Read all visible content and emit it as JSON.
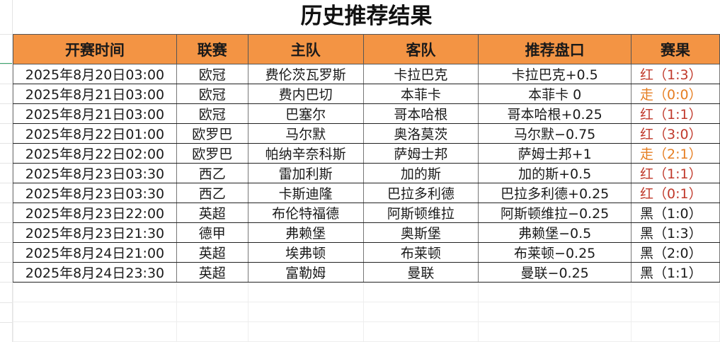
{
  "title": "历史推荐结果",
  "columns": [
    "开赛时间",
    "联赛",
    "主队",
    "客队",
    "推荐盘口",
    "赛果"
  ],
  "colors": {
    "header_bg": "#f39444",
    "red": "#c0392b",
    "push": "#e67e22",
    "black": "#1a1a1a"
  },
  "rows": [
    {
      "time": "2025年8月20日03:00",
      "league": "欧冠",
      "home": "费伦茨瓦罗斯",
      "away": "卡拉巴克",
      "pick": "卡拉巴克+0.5",
      "result": "红（1:3）",
      "status": "red"
    },
    {
      "time": "2025年8月21日03:00",
      "league": "欧冠",
      "home": "费内巴切",
      "away": "本菲卡",
      "pick": "本菲卡 0",
      "result": "走（0:0）",
      "status": "push"
    },
    {
      "time": "2025年8月21日03:00",
      "league": "欧冠",
      "home": "巴塞尔",
      "away": "哥本哈根",
      "pick": "哥本哈根+0.25",
      "result": "红（1:1）",
      "status": "red"
    },
    {
      "time": "2025年8月22日01:00",
      "league": "欧罗巴",
      "home": "马尔默",
      "away": "奥洛莫茨",
      "pick": "马尔默−0.75",
      "result": "红（3:0）",
      "status": "red"
    },
    {
      "time": "2025年8月22日02:00",
      "league": "欧罗巴",
      "home": "帕纳辛奈科斯",
      "away": "萨姆士邦",
      "pick": "萨姆士邦+1",
      "result": "走（2:1）",
      "status": "push"
    },
    {
      "time": "2025年8月23日03:30",
      "league": "西乙",
      "home": "雷加利斯",
      "away": "加的斯",
      "pick": "加的斯+0.5",
      "result": "红（1:1）",
      "status": "red"
    },
    {
      "time": "2025年8月23日03:30",
      "league": "西乙",
      "home": "卡斯迪隆",
      "away": "巴拉多利德",
      "pick": "巴拉多利德+0.25",
      "result": "红（0:1）",
      "status": "red"
    },
    {
      "time": "2025年8月23日22:00",
      "league": "英超",
      "home": "布伦特福德",
      "away": "阿斯顿维拉",
      "pick": "阿斯顿维拉−0.25",
      "result": "黑（1:0）",
      "status": "black"
    },
    {
      "time": "2025年8月23日21:30",
      "league": "德甲",
      "home": "弗赖堡",
      "away": "奥斯堡",
      "pick": "弗赖堡−0.5",
      "result": "黑（1:3）",
      "status": "black"
    },
    {
      "time": "2025年8月24日21:00",
      "league": "英超",
      "home": "埃弗顿",
      "away": "布莱顿",
      "pick": "布莱顿−0.25",
      "result": "黑（2:0）",
      "status": "black"
    },
    {
      "time": "2025年8月24日23:30",
      "league": "英超",
      "home": "富勒姆",
      "away": "曼联",
      "pick": "曼联−0.25",
      "result": "黑（1:1）",
      "status": "black"
    }
  ]
}
